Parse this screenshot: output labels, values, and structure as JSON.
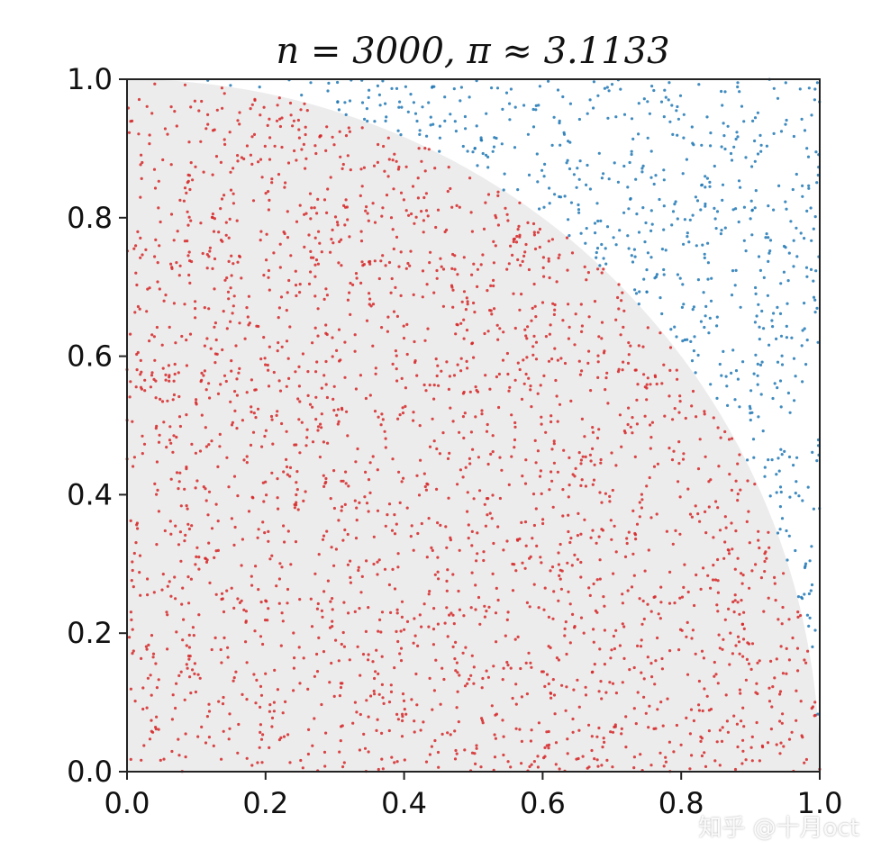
{
  "chart_data": {
    "type": "scatter",
    "title": "n = 3000, π ≈ 3.1133",
    "xlabel": "",
    "ylabel": "",
    "xlim": [
      0.0,
      1.0
    ],
    "ylim": [
      0.0,
      1.0
    ],
    "x_ticks": [
      "0.0",
      "0.2",
      "0.4",
      "0.6",
      "0.8",
      "1.0"
    ],
    "y_ticks": [
      "0.0",
      "0.2",
      "0.4",
      "0.6",
      "0.8",
      "1.0"
    ],
    "grid": false,
    "n_points": 3000,
    "pi_estimate": 3.1133,
    "quarter_circle_fill": "#ececec",
    "series": [
      {
        "color": "#d62728",
        "region": "inside unit circle"
      },
      {
        "color": "#1f77b4",
        "region": "outside unit circle"
      }
    ]
  },
  "watermark": "知乎 @十月oct"
}
